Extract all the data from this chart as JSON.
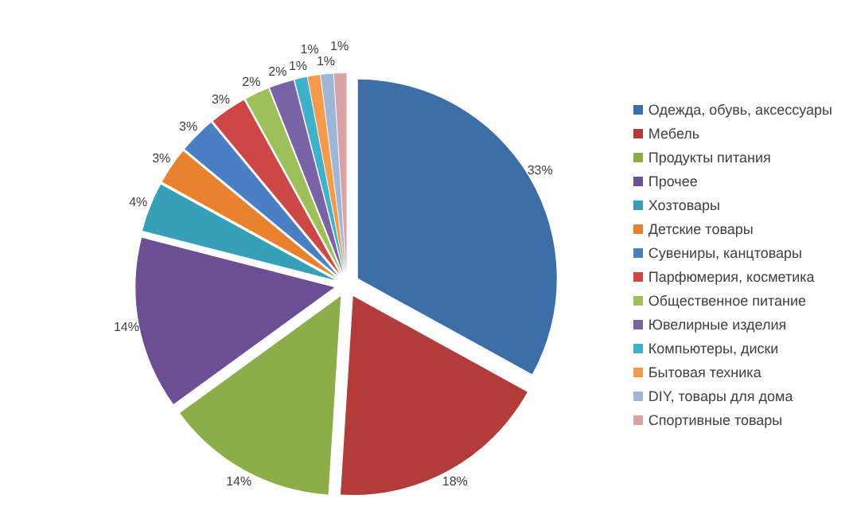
{
  "chart_data": {
    "type": "pie",
    "categories": [
      "Одежда, обувь, аксессуары",
      "Мебель",
      "Продукты питания",
      "Прочее",
      "Хозтовары",
      "Детские товары",
      "Сувениры, канцтовары",
      "Парфюмерия, косметика",
      "Общественное питание",
      "Ювелирные изделия",
      "Компьютеры, диски",
      "Бытовая техника",
      "DIY, товары для дома",
      "Спортивные товары"
    ],
    "values": [
      33,
      18,
      14,
      14,
      4,
      3,
      3,
      3,
      2,
      2,
      1,
      1,
      1,
      1
    ],
    "value_labels": [
      "33%",
      "18%",
      "14%",
      "14%",
      "4%",
      "3%",
      "3%",
      "3%",
      "2%",
      "2%",
      "1%",
      "1%",
      "1%",
      "1%"
    ],
    "colors": [
      "#3d6ea8",
      "#b13c3a",
      "#8cad4a",
      "#6c4f92",
      "#36a0b8",
      "#e9822f",
      "#4a7fc4",
      "#cc4745",
      "#9dc05a",
      "#7a62a6",
      "#41b0c9",
      "#f39a4d",
      "#9fb6d6",
      "#d8a3a6"
    ],
    "legend": "right"
  }
}
